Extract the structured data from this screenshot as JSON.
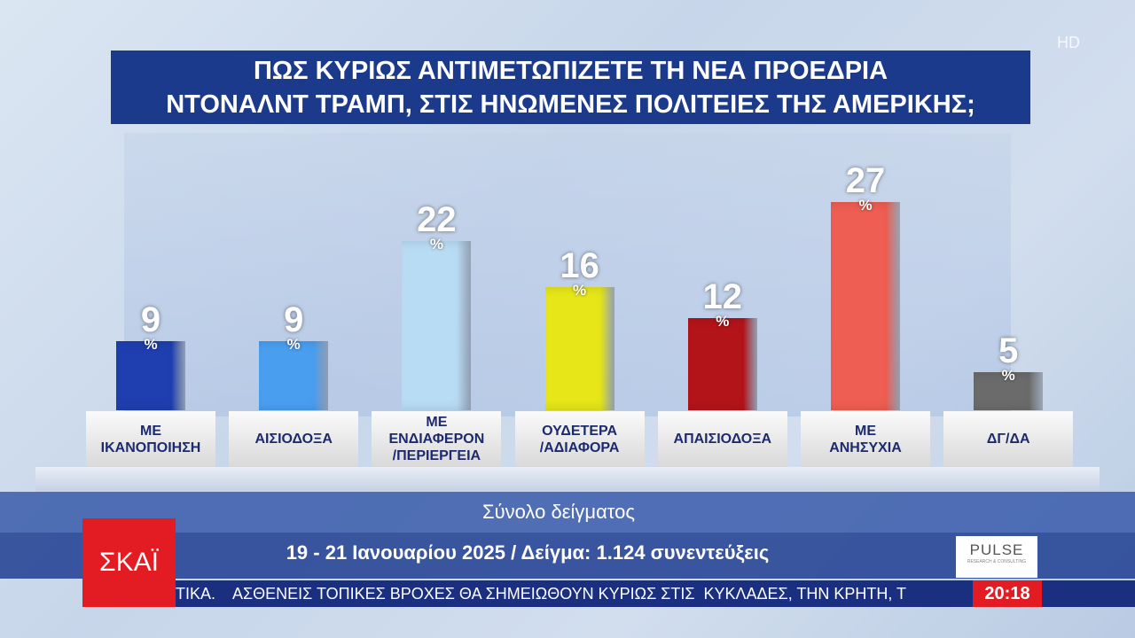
{
  "chart_data": {
    "type": "bar",
    "title": "ΠΩΣ ΚΥΡΙΩΣ ΑΝΤΙΜΕΤΩΠΙΖΕΤΕ ΤΗ ΝΕΑ ΠΡΟΕΔΡΙΑ\nΝΤΟΝΑΛΝΤ ΤΡΑΜΠ, ΣΤΙΣ ΗΝΩΜΕΝΕΣ ΠΟΛΙΤΕΙΕΣ ΤΗΣ ΑΜΕΡΙΚΗΣ;",
    "categories": [
      "ΜΕ\nΙΚΑΝΟΠΟΙΗΣΗ",
      "ΑΙΣΙΟΔΟΞΑ",
      "ΜΕ\nΕΝΔΙΑΦΕΡΟΝ\n/ΠΕΡΙΕΡΓΕΙΑ",
      "ΟΥΔΕΤΕΡΑ\n/ΑΔΙΑΦΟΡΑ",
      "ΑΠΑΙΣΙΟΔΟΞΑ",
      "ΜΕ\nΑΝΗΣΥΧΙΑ",
      "ΔΓ/ΔΑ"
    ],
    "values": [
      9,
      9,
      22,
      16,
      12,
      27,
      5
    ],
    "unit": "%",
    "colors": [
      "#1f3fb0",
      "#4a9ef0",
      "#b9dcf5",
      "#e6e619",
      "#b3141a",
      "#ee5e52",
      "#6b6b6b"
    ],
    "subtitle": "Σύνολο δείγματος",
    "note": "19 - 21 Ιανουαρίου 2025 / Δείγμα: 1.124 συνεντεύξεις"
  },
  "broadcast": {
    "channel": "ΣΚΑΪ",
    "quality": "HD",
    "source": "PULSE",
    "source_tagline": "RESEARCH & CONSULTING",
    "ticker": "ΤΙΚΑ.    ΑΣΘΕΝΕΙΣ ΤΟΠΙΚΕΣ ΒΡΟΧΕΣ ΘΑ ΣΗΜΕΙΩΘΟΥΝ ΚΥΡΙΩΣ ΣΤΙΣ  ΚΥΚΛΑΔΕΣ, ΤΗΝ ΚΡΗΤΗ, Τ",
    "time": "20:18"
  }
}
